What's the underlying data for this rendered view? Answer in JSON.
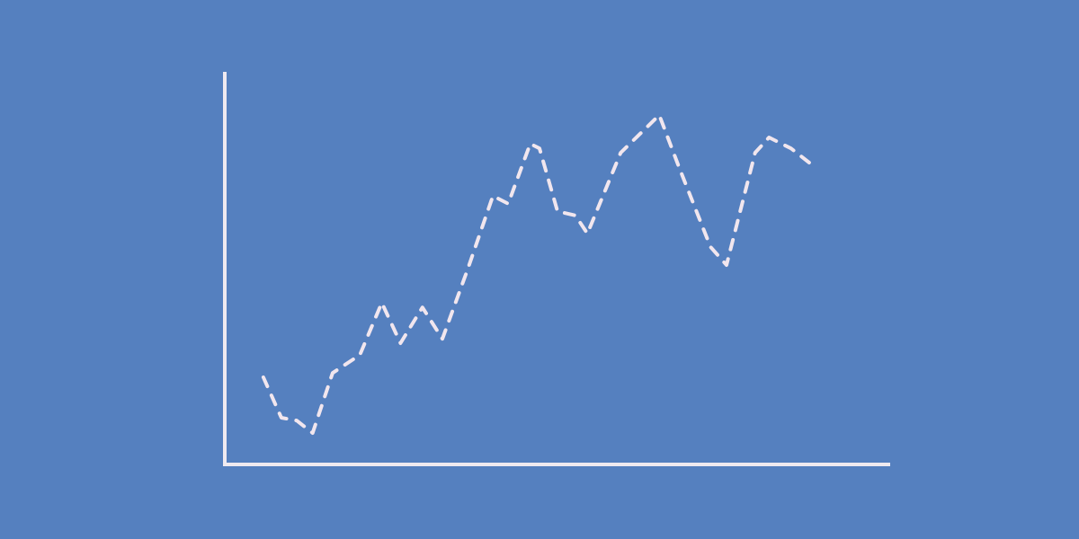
{
  "chart_data": {
    "type": "line",
    "x": [
      5.8,
      8.5,
      10.8,
      13.2,
      16.2,
      20.3,
      23.6,
      26.4,
      29.7,
      32.7,
      36.5,
      40.3,
      42.6,
      45.9,
      47.3,
      50.0,
      52.7,
      54.5,
      59.5,
      65.3,
      68.2,
      73.0,
      75.4,
      79.7,
      81.8,
      85.1,
      88.5
    ],
    "values": [
      22.2,
      11.9,
      11.2,
      8.0,
      23.3,
      27.9,
      41.2,
      30.9,
      40.0,
      32.0,
      49.7,
      68.4,
      66.4,
      81.7,
      80.5,
      64.5,
      63.4,
      58.8,
      79.4,
      89.0,
      76.0,
      55.4,
      50.8,
      79.4,
      83.3,
      80.5,
      76.0
    ],
    "color": "#f1e6ee",
    "line_style": "dashed",
    "xlim": [
      0,
      100
    ],
    "ylim": [
      0,
      100
    ]
  }
}
